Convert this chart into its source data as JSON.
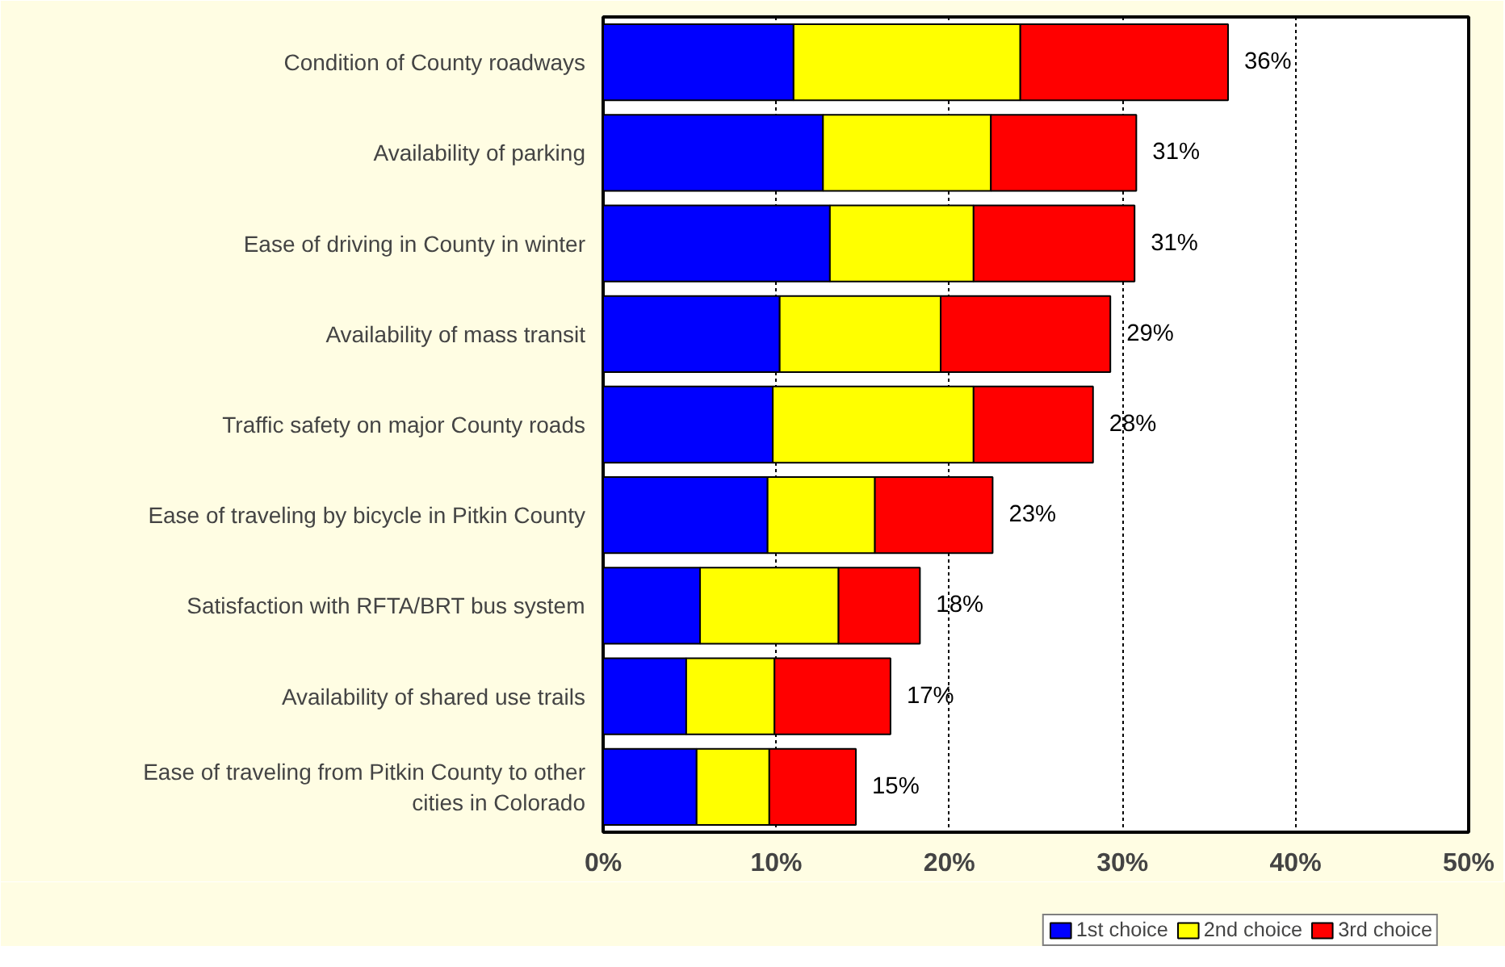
{
  "chart_data": {
    "type": "bar",
    "orientation": "horizontal",
    "stacked": true,
    "categories": [
      "Condition of County roadways",
      "Availability of parking",
      "Ease of driving in County in winter",
      "Availability of mass transit",
      "Traffic safety on major County roads",
      "Ease of traveling by bicycle in Pitkin County",
      "Satisfaction with RFTA/BRT bus system",
      "Availability of shared use trails",
      "Ease of traveling from Pitkin County to other cities in Colorado"
    ],
    "series": [
      {
        "name": "1st choice",
        "color": "#0000ff",
        "values": [
          11.0,
          12.7,
          13.1,
          10.2,
          9.8,
          9.5,
          5.6,
          4.8,
          5.4
        ]
      },
      {
        "name": "2nd choice",
        "color": "#ffff00",
        "values": [
          13.1,
          9.7,
          8.3,
          9.3,
          11.6,
          6.2,
          8.0,
          5.1,
          4.2
        ]
      },
      {
        "name": "3rd choice",
        "color": "#ff0000",
        "values": [
          12.0,
          8.4,
          9.3,
          9.8,
          6.9,
          6.8,
          4.7,
          6.7,
          5.0
        ]
      }
    ],
    "totals": [
      "36%",
      "31%",
      "31%",
      "29%",
      "28%",
      "23%",
      "18%",
      "17%",
      "15%"
    ],
    "xlim": [
      0,
      50
    ],
    "xticks": [
      {
        "value": 0,
        "label": "0%"
      },
      {
        "value": 10,
        "label": "10%"
      },
      {
        "value": 20,
        "label": "20%"
      },
      {
        "value": 30,
        "label": "30%"
      },
      {
        "value": 40,
        "label": "40%"
      },
      {
        "value": 50,
        "label": "50%"
      }
    ],
    "grid": "x",
    "legend": "bottom right"
  }
}
